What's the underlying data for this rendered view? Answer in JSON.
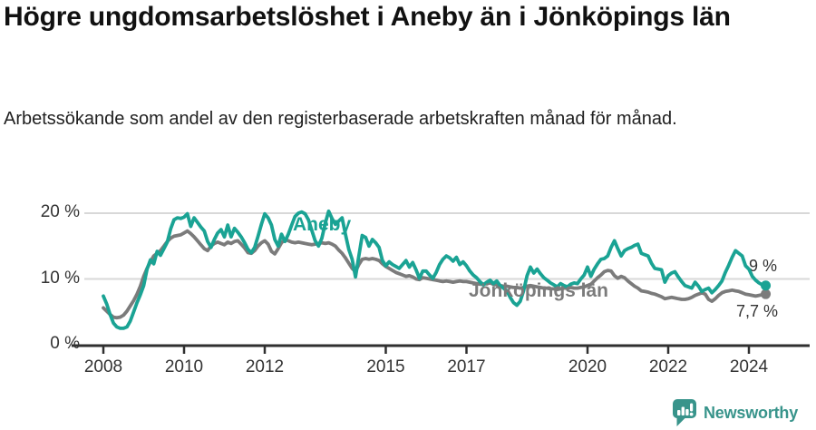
{
  "header": {
    "title": "Högre ungdomsarbetslöshet i Aneby än i Jönköpings län",
    "subtitle": "Arbetssökande som andel av den registerbaserade arbetskraften månad för månad."
  },
  "chart_data": {
    "type": "line",
    "x_start_year": 2008,
    "points_per_year": 12,
    "ylim": [
      0,
      21
    ],
    "grid": "horizontal",
    "axis_color": "#2f2f2f",
    "grid_color": "#d8d8d8",
    "yticks": [
      {
        "value": 0,
        "label": "0 %"
      },
      {
        "value": 10,
        "label": "10 %"
      },
      {
        "value": 20,
        "label": "20 %"
      }
    ],
    "xticks": [
      {
        "year": 2008,
        "label": "2008"
      },
      {
        "year": 2010,
        "label": "2010"
      },
      {
        "year": 2012,
        "label": "2012"
      },
      {
        "year": 2015,
        "label": "2015"
      },
      {
        "year": 2017,
        "label": "2017"
      },
      {
        "year": 2020,
        "label": "2020"
      },
      {
        "year": 2022,
        "label": "2022"
      },
      {
        "year": 2024,
        "label": "2024"
      }
    ],
    "series": [
      {
        "name": "Jönköpings län",
        "color": "#7b7b7b",
        "end_label": "7,7 %",
        "values": [
          5.6,
          5.1,
          4.6,
          4.2,
          4.1,
          4.2,
          4.5,
          5.1,
          5.9,
          6.7,
          7.7,
          8.9,
          10.4,
          11.6,
          12.6,
          13.5,
          13.9,
          14.3,
          15.0,
          15.7,
          16.2,
          16.5,
          16.6,
          16.7,
          17.0,
          17.3,
          16.9,
          16.4,
          15.8,
          15.2,
          14.6,
          14.3,
          15.0,
          15.4,
          15.6,
          15.4,
          15.2,
          15.6,
          15.4,
          15.7,
          15.8,
          15.3,
          14.7,
          14.0,
          13.9,
          14.3,
          15.0,
          15.5,
          15.8,
          15.3,
          14.2,
          13.8,
          14.6,
          15.5,
          16.0,
          15.8,
          15.6,
          15.5,
          15.6,
          15.5,
          15.4,
          15.3,
          15.2,
          15.3,
          15.4,
          15.5,
          15.4,
          15.5,
          15.3,
          15.0,
          14.4,
          13.9,
          13.2,
          12.4,
          11.6,
          11.1,
          12.2,
          13.0,
          13.1,
          13.0,
          13.1,
          13.0,
          12.8,
          12.3,
          11.9,
          11.6,
          11.3,
          11.0,
          10.8,
          10.6,
          10.4,
          10.5,
          10.3,
          10.0,
          9.9,
          10.2,
          10.1,
          10.0,
          9.9,
          9.8,
          9.7,
          9.6,
          9.7,
          9.6,
          9.5,
          9.6,
          9.7,
          9.6,
          9.6,
          9.5,
          9.4,
          9.3,
          9.2,
          9.2,
          9.3,
          9.4,
          9.2,
          9.1,
          9.0,
          8.9,
          8.9,
          8.8,
          8.7,
          8.7,
          8.6,
          8.7,
          8.9,
          9.0,
          8.9,
          8.8,
          8.7,
          8.6,
          8.6,
          8.5,
          8.5,
          8.4,
          8.5,
          8.6,
          8.6,
          8.7,
          8.6,
          8.6,
          8.7,
          8.8,
          9.0,
          9.2,
          9.7,
          10.2,
          10.6,
          11.1,
          11.3,
          11.2,
          10.5,
          10.1,
          10.4,
          10.2,
          9.7,
          9.3,
          8.9,
          8.6,
          8.2,
          8.1,
          8.0,
          7.8,
          7.7,
          7.5,
          7.3,
          7.0,
          7.1,
          7.2,
          7.1,
          7.0,
          6.9,
          6.9,
          7.0,
          7.2,
          7.5,
          7.7,
          7.9,
          7.7,
          6.9,
          6.6,
          7.0,
          7.5,
          7.9,
          8.1,
          8.2,
          8.3,
          8.2,
          8.1,
          7.9,
          7.7,
          7.6,
          7.5,
          7.4,
          7.5,
          7.6,
          7.7
        ]
      },
      {
        "name": "Aneby",
        "color": "#1aa394",
        "end_label": "9 %",
        "values": [
          7.4,
          6.2,
          4.6,
          3.3,
          2.7,
          2.5,
          2.5,
          2.7,
          3.6,
          5.0,
          6.4,
          7.6,
          9.0,
          11.5,
          12.9,
          12.3,
          14.2,
          13.6,
          14.6,
          15.6,
          17.6,
          19.0,
          19.3,
          19.2,
          19.4,
          19.9,
          18.0,
          19.3,
          18.6,
          17.9,
          17.3,
          15.7,
          14.8,
          16.0,
          17.0,
          17.5,
          16.4,
          18.2,
          16.4,
          17.7,
          17.1,
          16.4,
          15.5,
          14.5,
          14.0,
          14.8,
          16.5,
          18.3,
          19.9,
          19.3,
          18.2,
          16.0,
          15.0,
          16.8,
          15.7,
          16.8,
          18.2,
          19.5,
          20.0,
          20.2,
          19.9,
          19.0,
          17.4,
          15.8,
          15.0,
          16.2,
          18.5,
          20.3,
          19.2,
          18.3,
          18.8,
          19.3,
          16.8,
          14.5,
          13.0,
          10.3,
          13.5,
          16.6,
          16.3,
          15.0,
          16.0,
          15.5,
          14.8,
          12.8,
          12.0,
          12.6,
          12.2,
          11.9,
          11.6,
          12.2,
          12.8,
          11.8,
          12.5,
          11.4,
          10.1,
          11.2,
          11.2,
          10.6,
          10.1,
          11.0,
          12.2,
          13.0,
          13.5,
          13.2,
          12.7,
          13.3,
          12.2,
          12.6,
          12.0,
          11.2,
          10.6,
          10.2,
          9.6,
          9.1,
          9.5,
          9.8,
          9.3,
          9.7,
          9.0,
          8.6,
          8.2,
          7.2,
          6.4,
          6.0,
          6.6,
          8.2,
          10.5,
          11.8,
          10.9,
          11.5,
          10.8,
          10.2,
          9.8,
          9.4,
          9.1,
          8.8,
          9.3,
          9.0,
          8.8,
          9.2,
          9.4,
          9.3,
          10.0,
          10.6,
          11.8,
          10.4,
          11.5,
          12.3,
          13.0,
          13.1,
          13.5,
          14.8,
          15.8,
          14.6,
          13.5,
          14.3,
          14.6,
          14.8,
          15.1,
          15.3,
          13.9,
          13.7,
          13.5,
          12.4,
          11.6,
          11.5,
          11.4,
          9.5,
          10.5,
          10.9,
          11.1,
          10.3,
          9.6,
          9.0,
          8.8,
          8.6,
          9.5,
          8.9,
          8.1,
          8.4,
          8.6,
          7.9,
          8.4,
          9.0,
          9.7,
          11.0,
          12.1,
          13.3,
          14.3,
          13.9,
          13.5,
          12.0,
          11.5,
          10.4,
          9.8,
          9.4,
          9.1,
          9.0
        ]
      }
    ]
  },
  "footer": {
    "brand": "Newsworthy"
  }
}
